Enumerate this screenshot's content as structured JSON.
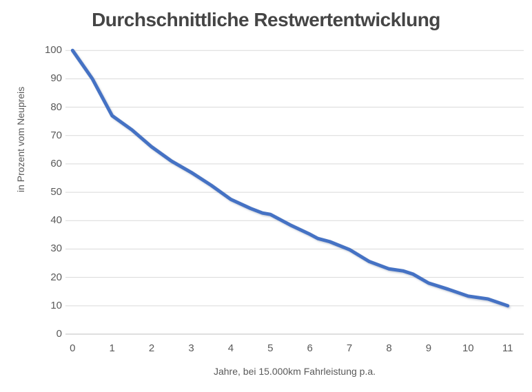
{
  "title": "Durchschnittliche Restwertentwicklung",
  "chart_data": {
    "type": "line",
    "title": "Durchschnittliche Restwertentwicklung",
    "xlabel": "Jahre, bei 15.000km Fahrleistung p.a.",
    "ylabel": "in Prozent vom Neupreis",
    "x_ticks": [
      0,
      1,
      2,
      3,
      4,
      5,
      6,
      7,
      8,
      9,
      10,
      11
    ],
    "y_ticks": [
      0,
      10,
      20,
      30,
      40,
      50,
      60,
      70,
      80,
      90,
      100
    ],
    "xlim": [
      0,
      11
    ],
    "ylim": [
      0,
      100
    ],
    "grid": "horizontal",
    "legend_position": "none",
    "series": [
      {
        "x": [
          0,
          1,
          2,
          3,
          4,
          5,
          6,
          7,
          8,
          9,
          10,
          11
        ],
        "values": [
          100,
          77,
          66,
          57,
          47.5,
          42,
          35,
          30,
          23,
          18,
          13,
          10
        ]
      }
    ],
    "curve_points": [
      [
        0,
        100
      ],
      [
        0.5,
        90
      ],
      [
        1,
        77
      ],
      [
        1.5,
        72
      ],
      [
        2,
        66
      ],
      [
        2.5,
        61
      ],
      [
        3,
        57
      ],
      [
        3.5,
        52.5
      ],
      [
        4,
        47.5
      ],
      [
        4.5,
        44.3
      ],
      [
        4.8,
        42.7
      ],
      [
        5,
        42.2
      ],
      [
        5.5,
        38.5
      ],
      [
        6,
        35.2
      ],
      [
        6.2,
        33.7
      ],
      [
        6.5,
        32.6
      ],
      [
        7,
        29.8
      ],
      [
        7.5,
        25.6
      ],
      [
        8,
        23
      ],
      [
        8.35,
        22.3
      ],
      [
        8.6,
        21.2
      ],
      [
        9,
        18
      ],
      [
        9.5,
        15.8
      ],
      [
        10,
        13.4
      ],
      [
        10.5,
        12.4
      ],
      [
        11,
        10
      ]
    ],
    "colors": {
      "line": "#4472C4",
      "gridline": "#D9D9D9",
      "axis_line": "#BFBFBF",
      "axis_text": "#595959",
      "title_text": "#454545"
    }
  }
}
